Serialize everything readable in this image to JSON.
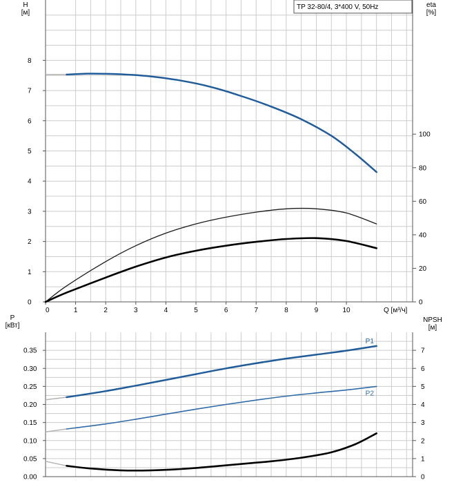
{
  "colors": {
    "h_curve": "#1f5c99",
    "p1_curve": "#1f5c99",
    "p2_curve": "#2e6aa8",
    "eta_curve": "#1a1a1a",
    "npsh_curve": "#000000",
    "extension": "#b3b3b3",
    "grid": "#cccccc",
    "frame": "#555555",
    "text": "#000000"
  },
  "chart_data": [
    {
      "type": "line",
      "title": "TP 32-80/4, 3*400 V, 50Hz",
      "xlabel": "Q [м³/ч]",
      "ylabel": "H\n[м]",
      "ylabel_right": "eta\n[%]",
      "xlim": [
        0,
        12.2
      ],
      "ylim": [
        0,
        10
      ],
      "ylim_right": [
        0,
        180
      ],
      "xticks": [
        0,
        1,
        2,
        3,
        4,
        5,
        6,
        7,
        8,
        9,
        10
      ],
      "yticks": [
        0,
        1,
        2,
        3,
        4,
        5,
        6,
        7,
        8
      ],
      "yticks_right": [
        0,
        20,
        40,
        60,
        80,
        100
      ],
      "grid": true,
      "series": [
        {
          "name": "",
          "axis": "left",
          "points": [
            [
              0.7,
              7.53
            ],
            [
              1.5,
              7.56
            ],
            [
              2.5,
              7.54
            ],
            [
              3.5,
              7.47
            ],
            [
              4.5,
              7.33
            ],
            [
              5.5,
              7.12
            ],
            [
              6.5,
              6.82
            ],
            [
              7.5,
              6.47
            ],
            [
              8.5,
              6.05
            ],
            [
              9.5,
              5.5
            ],
            [
              10.3,
              4.9
            ],
            [
              11.0,
              4.3
            ]
          ],
          "extension_left": [
            [
              0,
              7.53
            ],
            [
              0.7,
              7.53
            ]
          ]
        },
        {
          "name": "",
          "axis": "right",
          "points": [
            [
              0,
              0
            ],
            [
              0.7,
              9.5
            ],
            [
              2,
              24
            ],
            [
              3,
              33.5
            ],
            [
              4,
              41
            ],
            [
              5,
              46.5
            ],
            [
              6,
              50.5
            ],
            [
              7,
              53.5
            ],
            [
              8,
              55.5
            ],
            [
              9,
              55.5
            ],
            [
              10,
              53
            ],
            [
              11.0,
              46.5
            ]
          ]
        },
        {
          "name": "",
          "axis": "right",
          "points": [
            [
              0,
              0
            ],
            [
              0.7,
              5.5
            ],
            [
              2,
              14.5
            ],
            [
              3,
              21
            ],
            [
              4,
              26.5
            ],
            [
              5,
              30.5
            ],
            [
              6,
              33.5
            ],
            [
              7,
              35.8
            ],
            [
              8,
              37.5
            ],
            [
              9,
              38
            ],
            [
              10,
              36.3
            ],
            [
              11.0,
              32
            ]
          ]
        }
      ]
    },
    {
      "type": "line",
      "title": "",
      "xlabel": "",
      "ylabel": "P\n[кВт]",
      "ylabel_right": "NPSH\n[м]",
      "xlim": [
        0,
        12.2
      ],
      "ylim": [
        0,
        0.4
      ],
      "ylim_right": [
        0,
        8
      ],
      "yticks": [
        0.0,
        0.05,
        0.1,
        0.15,
        0.2,
        0.25,
        0.3,
        0.35
      ],
      "ytick_labels": [
        "0.00",
        "0.05",
        "0.10",
        "0.15",
        "0.20",
        "0.25",
        "0.30",
        "0.35"
      ],
      "yticks_right": [
        0,
        1,
        2,
        3,
        4,
        5,
        6,
        7
      ],
      "grid": true,
      "series": [
        {
          "name": "P1",
          "axis": "left",
          "points": [
            [
              0.7,
              0.22
            ],
            [
              2,
              0.237
            ],
            [
              3,
              0.252
            ],
            [
              4,
              0.268
            ],
            [
              5,
              0.284
            ],
            [
              6,
              0.3
            ],
            [
              7,
              0.314
            ],
            [
              8,
              0.327
            ],
            [
              9,
              0.338
            ],
            [
              10,
              0.349
            ],
            [
              11.0,
              0.362
            ]
          ],
          "extension_left": [
            [
              0,
              0.213
            ],
            [
              0.7,
              0.22
            ]
          ]
        },
        {
          "name": "P2",
          "axis": "left",
          "points": [
            [
              0.7,
              0.132
            ],
            [
              2,
              0.146
            ],
            [
              3,
              0.159
            ],
            [
              4,
              0.173
            ],
            [
              5,
              0.187
            ],
            [
              6,
              0.2
            ],
            [
              7,
              0.212
            ],
            [
              8,
              0.223
            ],
            [
              9,
              0.232
            ],
            [
              10,
              0.24
            ],
            [
              11.0,
              0.25
            ]
          ],
          "extension_left": [
            [
              0,
              0.124
            ],
            [
              0.7,
              0.132
            ]
          ]
        },
        {
          "name": "",
          "axis": "right",
          "points": [
            [
              0.7,
              0.6
            ],
            [
              1.5,
              0.45
            ],
            [
              2.5,
              0.35
            ],
            [
              3.5,
              0.35
            ],
            [
              4.5,
              0.42
            ],
            [
              5.5,
              0.55
            ],
            [
              6.5,
              0.7
            ],
            [
              7.5,
              0.85
            ],
            [
              8.5,
              1.05
            ],
            [
              9.5,
              1.35
            ],
            [
              10.3,
              1.8
            ],
            [
              11.0,
              2.4
            ]
          ],
          "extension_left": [
            [
              0,
              0.85
            ],
            [
              0.7,
              0.6
            ]
          ]
        }
      ]
    }
  ]
}
